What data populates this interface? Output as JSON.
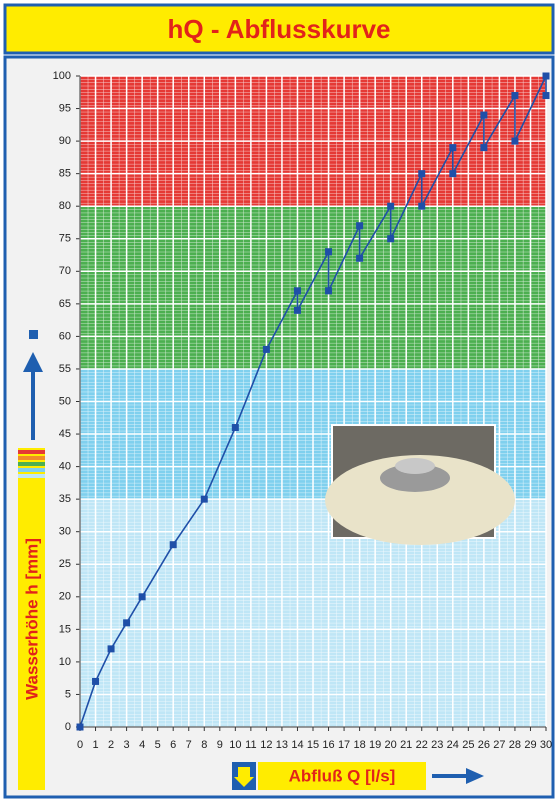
{
  "chart_data": {
    "type": "line",
    "title": "hQ - Abflusskurve",
    "xlabel": "Abfluß Q [l/s]",
    "ylabel": "Wasserhöhe h [mm]",
    "xlim": [
      0,
      30
    ],
    "ylim": [
      0,
      100
    ],
    "xticks": [
      0,
      1,
      2,
      3,
      4,
      5,
      6,
      7,
      8,
      9,
      10,
      11,
      12,
      13,
      14,
      15,
      16,
      17,
      18,
      19,
      20,
      21,
      22,
      23,
      24,
      25,
      26,
      27,
      28,
      29,
      30
    ],
    "yticks": [
      0,
      5,
      10,
      15,
      20,
      25,
      30,
      35,
      40,
      45,
      50,
      55,
      60,
      65,
      70,
      75,
      80,
      85,
      90,
      95,
      100
    ],
    "grid": true,
    "bands": [
      {
        "from": 0,
        "to": 35,
        "color": "#bfe6f6"
      },
      {
        "from": 35,
        "to": 55,
        "color": "#7fd0ee"
      },
      {
        "from": 55,
        "to": 80,
        "color": "#4caf50"
      },
      {
        "from": 80,
        "to": 100,
        "color": "#e53935"
      }
    ],
    "series": [
      {
        "color": "#1f4fa8",
        "x": [
          0,
          1,
          2,
          3,
          4,
          6,
          8,
          10,
          12,
          14,
          14,
          16,
          16,
          18,
          18,
          20,
          20,
          22,
          22,
          24,
          24,
          26,
          26,
          28,
          28,
          30,
          30
        ],
        "values": [
          0,
          7,
          12,
          16,
          20,
          28,
          35,
          46,
          58,
          67,
          64,
          73,
          67,
          77,
          72,
          80,
          75,
          85,
          80,
          89,
          85,
          94,
          89,
          97,
          90,
          100,
          97
        ]
      }
    ]
  }
}
